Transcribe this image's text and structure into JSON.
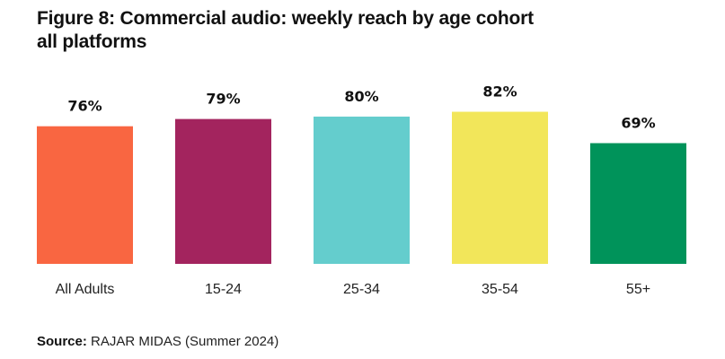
{
  "chart_data": {
    "type": "bar",
    "title": "Figure 8: Commercial audio: weekly reach by age cohort",
    "subtitle": "all platforms",
    "categories": [
      "All Adults",
      "15-24",
      "25-34",
      "35-54",
      "55+"
    ],
    "values": [
      76,
      79,
      80,
      82,
      69
    ],
    "value_labels": [
      "76%",
      "79%",
      "80%",
      "82%",
      "69%"
    ],
    "colors": [
      "#F96641",
      "#A3245E",
      "#64CDCD",
      "#F2E65A",
      "#00935A"
    ],
    "xlabel": "",
    "ylabel": "",
    "unit": "%",
    "grid": false,
    "legend": "none"
  },
  "source": {
    "label": "Source:",
    "text": " RAJAR MIDAS (Summer 2024)"
  }
}
